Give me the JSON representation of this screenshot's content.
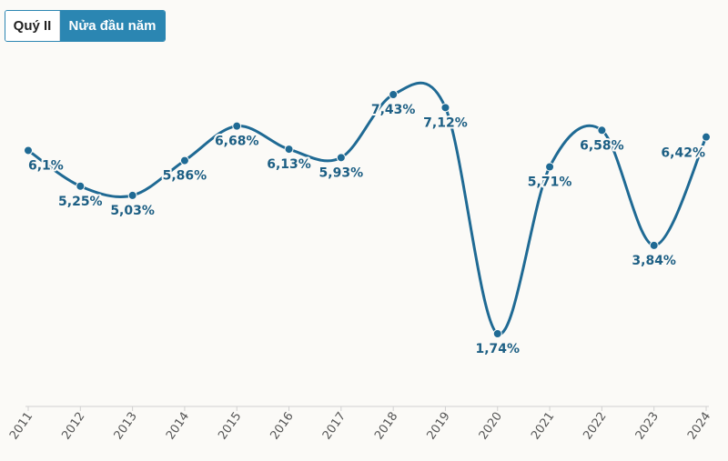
{
  "controls": {
    "options": [
      "Quý II",
      "Nửa đầu năm"
    ],
    "selected": "Nửa đầu năm"
  },
  "colors": {
    "line": "#1f6a94",
    "label": "#1d5f84",
    "toggle_active": "#2b86b2",
    "axis": "#d0d0d0",
    "background": "#fbfaf7"
  },
  "chart_data": {
    "type": "line",
    "title": "",
    "xlabel": "",
    "ylabel": "",
    "categories": [
      "2011",
      "2012",
      "2013",
      "2014",
      "2015",
      "2016",
      "2017",
      "2018",
      "2019",
      "2020",
      "2021",
      "2022",
      "2023",
      "2024"
    ],
    "series": [
      {
        "values": [
          6.1,
          5.25,
          5.03,
          5.86,
          6.68,
          6.13,
          5.93,
          7.43,
          7.12,
          1.74,
          5.71,
          6.58,
          3.84,
          6.42
        ],
        "labels": [
          "6,1%",
          "5,25%",
          "5,03%",
          "5,86%",
          "6,68%",
          "6,13%",
          "5,93%",
          "7,43%",
          "7,12%",
          "1,74%",
          "5,71%",
          "6,58%",
          "3,84%",
          "6,42%"
        ]
      }
    ],
    "ylim": [
      0,
      8
    ],
    "grid": false,
    "legend": false
  }
}
